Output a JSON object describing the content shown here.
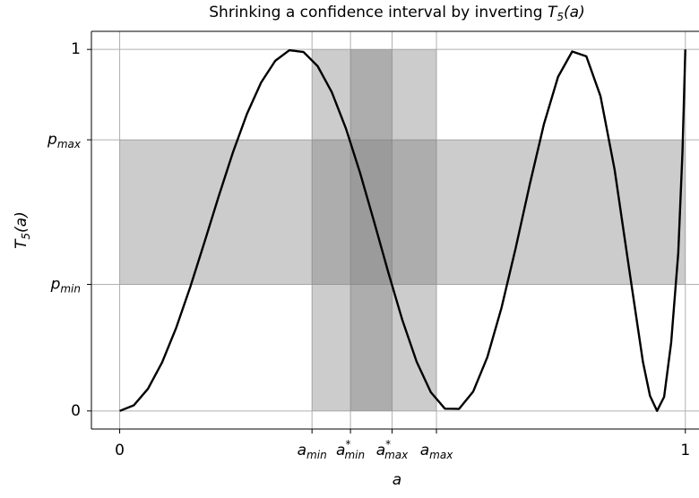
{
  "chart_data": {
    "type": "line",
    "title": "Shrinking a confidence interval by inverting $T_{5}(a)$",
    "xlabel": "$a$",
    "ylabel": "$T_{5}(a)$",
    "xlim": [
      -0.05,
      1.04
    ],
    "ylim": [
      -0.05,
      1.05
    ],
    "xticks": [
      0,
      {
        "value": 0.34,
        "label": "$a_{min}$"
      },
      {
        "value": 0.408,
        "label": "$a^{*}_{min}$"
      },
      {
        "value": 0.4815,
        "label": "$a^{*}_{max}$"
      },
      {
        "value": 0.56,
        "label": "$a_{max}$"
      },
      1
    ],
    "yticks": [
      0,
      {
        "value": 0.35,
        "label": "$p_{min}$"
      },
      {
        "value": 0.75,
        "label": "$p_{max}$"
      },
      1
    ],
    "grid": true,
    "x_intervals": [
      [
        0.34,
        0.56
      ],
      [
        0.408,
        0.4815
      ]
    ],
    "y_interval": [
      0.35,
      0.75
    ],
    "interval_color": "#808080",
    "series": [
      {
        "color": "#000000",
        "x": [
          0,
          0.025,
          0.05,
          0.075,
          0.1,
          0.125,
          0.15,
          0.175,
          0.2,
          0.225,
          0.25,
          0.275,
          0.3,
          0.325,
          0.35,
          0.375,
          0.4,
          0.425,
          0.45,
          0.475,
          0.5,
          0.525,
          0.55,
          0.575,
          0.6,
          0.625,
          0.65,
          0.675,
          0.7,
          0.725,
          0.75,
          0.775,
          0.8,
          0.825,
          0.85,
          0.875,
          0.9,
          0.925,
          0.9375,
          0.95,
          0.9625,
          0.975,
          0.9875,
          0.995,
          1
        ],
        "values": [
          0,
          0.0156,
          0.0613,
          0.1344,
          0.2305,
          0.3439,
          0.4675,
          0.5935,
          0.7144,
          0.8217,
          0.9084,
          0.9686,
          0.9978,
          0.9929,
          0.9537,
          0.8817,
          0.7811,
          0.6584,
          0.5222,
          0.3824,
          0.25,
          0.1362,
          0.0519,
          0.0062,
          0.0057,
          0.0538,
          0.149,
          0.2852,
          0.4502,
          0.6268,
          0.7932,
          0.9243,
          0.9942,
          0.9809,
          0.8709,
          0.6674,
          0.3997,
          0.1362,
          0.042,
          0.0003,
          0.0389,
          0.1897,
          0.4373,
          0.7191,
          1
        ]
      }
    ]
  }
}
